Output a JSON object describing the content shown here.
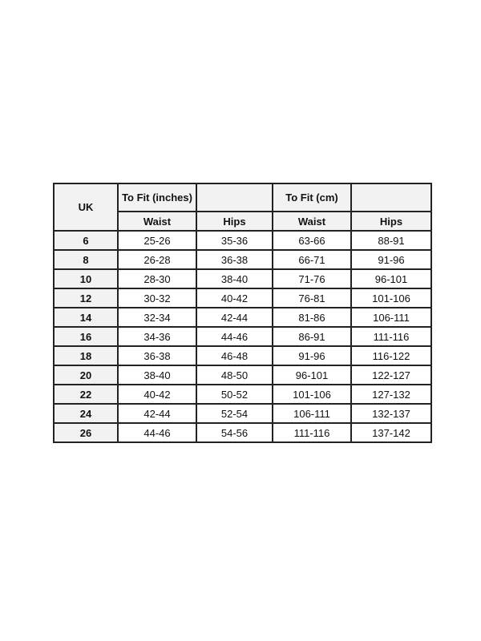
{
  "header": {
    "uk": "UK",
    "inches": "To Fit (inches)",
    "cm": "To Fit (cm)",
    "waist": "Waist",
    "hips": "Hips"
  },
  "rows": [
    [
      "6",
      "25-26",
      "35-36",
      "63-66",
      "88-91"
    ],
    [
      "8",
      "26-28",
      "36-38",
      "66-71",
      "91-96"
    ],
    [
      "10",
      "28-30",
      "38-40",
      "71-76",
      "96-101"
    ],
    [
      "12",
      "30-32",
      "40-42",
      "76-81",
      "101-106"
    ],
    [
      "14",
      "32-34",
      "42-44",
      "81-86",
      "106-111"
    ],
    [
      "16",
      "34-36",
      "44-46",
      "86-91",
      "111-116"
    ],
    [
      "18",
      "36-38",
      "46-48",
      "91-96",
      "116-122"
    ],
    [
      "20",
      "38-40",
      "48-50",
      "96-101",
      "122-127"
    ],
    [
      "22",
      "40-42",
      "50-52",
      "101-106",
      "127-132"
    ],
    [
      "24",
      "42-44",
      "52-54",
      "106-111",
      "132-137"
    ],
    [
      "26",
      "44-46",
      "54-56",
      "111-116",
      "137-142"
    ]
  ]
}
